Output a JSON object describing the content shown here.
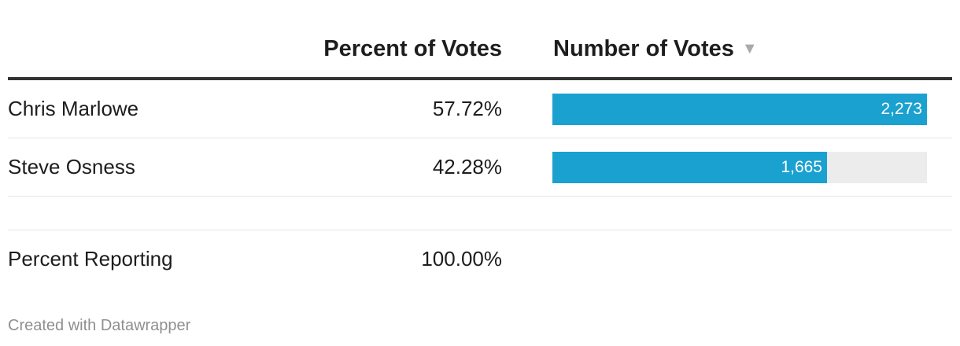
{
  "header": {
    "col_percent": "Percent of Votes",
    "col_number": "Number of Votes",
    "sort_indicator": "▼"
  },
  "rows": [
    {
      "name": "Chris Marlowe",
      "percent": "57.72%",
      "votes_label": "2,273"
    },
    {
      "name": "Steve Osness",
      "percent": "42.28%",
      "votes_label": "1,665"
    }
  ],
  "reporting": {
    "label": "Percent Reporting",
    "value": "100.00%"
  },
  "footer": {
    "credit": "Created with Datawrapper"
  },
  "colors": {
    "bar": "#1aa1d0",
    "track": "#ececec"
  },
  "chart_data": {
    "type": "table",
    "columns": [
      "",
      "Percent of Votes",
      "Number of Votes"
    ],
    "categories": [
      "Chris Marlowe",
      "Steve Osness"
    ],
    "series": [
      {
        "name": "Percent of Votes",
        "values": [
          57.72,
          42.28
        ]
      },
      {
        "name": "Number of Votes",
        "values": [
          2273,
          1665
        ]
      }
    ],
    "bar_max": 2273,
    "extra_rows": [
      {
        "label": "Percent Reporting",
        "value": 100.0
      }
    ],
    "sorted_by": "Number of Votes",
    "sort_direction": "descending"
  }
}
